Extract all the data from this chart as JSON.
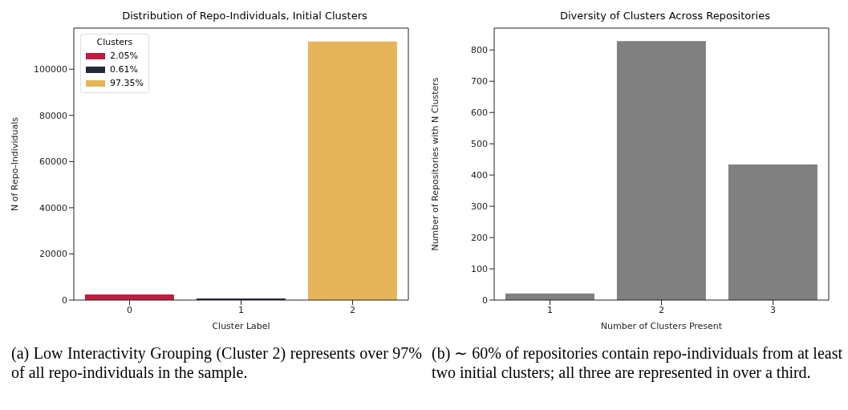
{
  "chart_data": [
    {
      "type": "bar",
      "title": "Distribution of Repo-Individuals, Initial Clusters",
      "xlabel": "Cluster Label",
      "ylabel": "N of Repo-Individuals",
      "categories": [
        "0",
        "1",
        "2"
      ],
      "series": [
        {
          "name": "2.05%",
          "color": "#c11b40",
          "values": [
            2400,
            null,
            null
          ]
        },
        {
          "name": "0.61%",
          "color": "#212a3b",
          "values": [
            null,
            700,
            null
          ]
        },
        {
          "name": "97.35%",
          "color": "#e6b559",
          "values": [
            null,
            null,
            112000
          ]
        }
      ],
      "ylim": [
        0,
        117800
      ],
      "yticks": [
        0,
        20000,
        40000,
        60000,
        80000,
        100000
      ],
      "legend": "top left",
      "legend_title": "Clusters",
      "grid": false,
      "annotations": [
        "(a) Low Interactivity Grouping (Cluster 2) represents over 97% of all repo-individuals in the sample."
      ]
    },
    {
      "type": "bar",
      "title": "Diversity of Clusters Across Repositories",
      "xlabel": "Number of Clusters Present",
      "ylabel": "Number of Repositories with N Clusters",
      "categories": [
        "1",
        "2",
        "3"
      ],
      "values": [
        21,
        828,
        434
      ],
      "color": "#808080",
      "ylim": [
        0,
        870
      ],
      "yticks": [
        0,
        100,
        200,
        300,
        400,
        500,
        600,
        700,
        800
      ],
      "grid": false,
      "annotations": [
        "(b) ∼ 60% of repositories contain repo-individuals from at least two initial clusters; all three are represented in over a third."
      ]
    }
  ]
}
